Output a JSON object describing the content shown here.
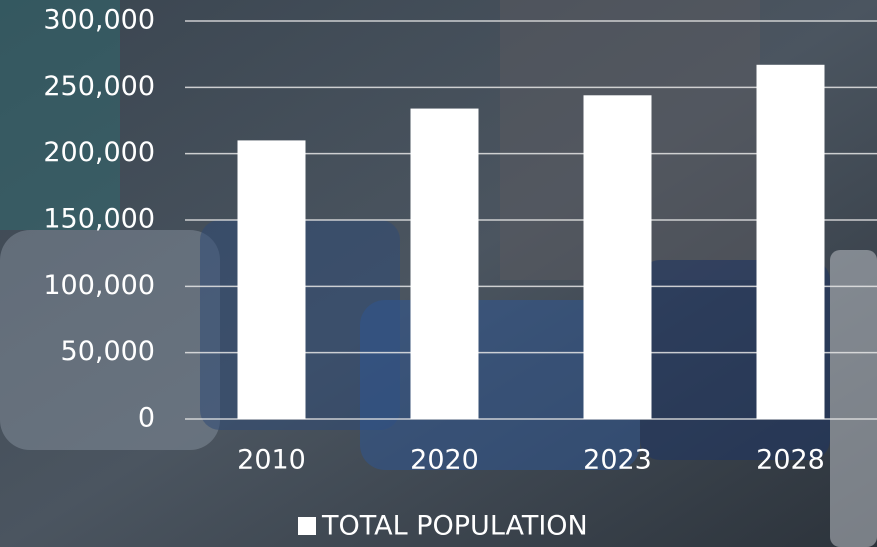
{
  "chart_data": {
    "type": "bar",
    "categories": [
      "2010",
      "2020",
      "2023",
      "2028"
    ],
    "series": [
      {
        "name": "TOTAL POPULATION",
        "color": "#ffffff",
        "values": [
          210000,
          234000,
          244000,
          267000
        ]
      }
    ],
    "ylim": [
      0,
      300000
    ],
    "yticks": [
      0,
      {
        "value": 50000,
        "label": "50,000"
      },
      {
        "value": 100000,
        "label": "100,000"
      },
      {
        "value": 150000,
        "label": "150,000"
      },
      {
        "value": 200000,
        "label": "200,000"
      },
      {
        "value": 250000,
        "label": "250,000"
      },
      {
        "value": 300000,
        "label": "300,000"
      }
    ],
    "grid": true,
    "legend": "bottom"
  }
}
